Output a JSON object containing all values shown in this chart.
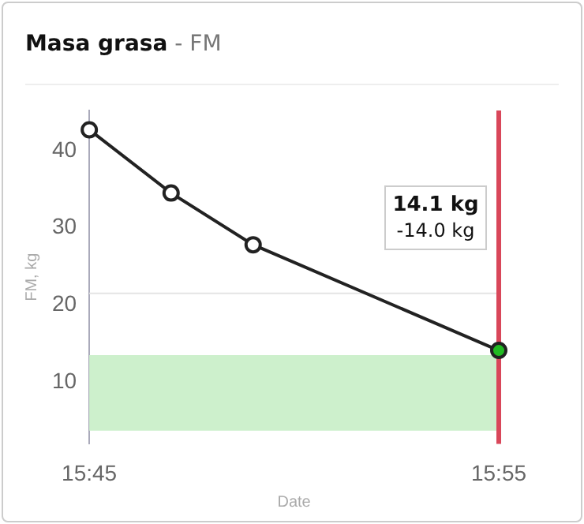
{
  "chart_data": {
    "type": "line",
    "title": "Masa grasa",
    "subtitle": "- FM",
    "xlabel": "Date",
    "ylabel": "FM, kg",
    "x": [
      15.75,
      15.7833,
      15.8167,
      15.9167
    ],
    "series": [
      {
        "color": "#222222",
        "colors": [
          "#ffffff",
          "#ffffff",
          "#ffffff",
          "#22bb22"
        ],
        "values": [
          42.7,
          34.5,
          27.8,
          14.1
        ]
      }
    ],
    "xlim": [
      15.75,
      15.9167
    ],
    "xticks": [
      {
        "value": 15.75,
        "label": "15:45"
      },
      {
        "value": 15.9167,
        "label": "15:55"
      }
    ],
    "ylim": [
      2,
      45.2
    ],
    "yticks": [
      10,
      20,
      30,
      40
    ],
    "bands": [
      {
        "axis": "y",
        "from": 3.7,
        "to": 13.5,
        "color": "#cdf0cc"
      }
    ],
    "ref_lines": [
      {
        "axis": "y",
        "value": 21.5,
        "color": "#e4e4e4"
      },
      {
        "axis": "x",
        "value": 15.9167,
        "color": "#d9475a"
      }
    ],
    "annotations": [
      "14.1 kg\n-14.0 kg"
    ],
    "marker": "circle",
    "line_style": "solid",
    "grid": false,
    "legend": false
  }
}
